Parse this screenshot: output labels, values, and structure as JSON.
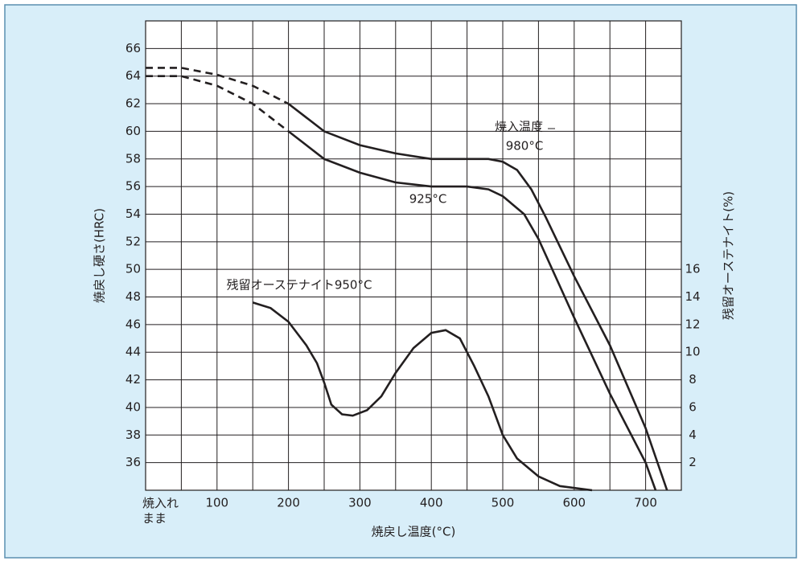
{
  "chart_data": {
    "type": "line",
    "x_label": "焼戻し温度(°C)",
    "y_label": "焼戻し硬さ(HRC)",
    "y2_label": "残留オーステナイト(%)",
    "xlim": [
      0,
      750
    ],
    "xticks": [
      {
        "value": 0,
        "label": "焼入れ\nまま"
      },
      100,
      200,
      300,
      400,
      500,
      600,
      700
    ],
    "ylim": [
      34,
      68
    ],
    "yticks": [
      36,
      38,
      40,
      42,
      44,
      46,
      48,
      50,
      52,
      54,
      56,
      58,
      60,
      62,
      64,
      66
    ],
    "y2lim": [
      0,
      34
    ],
    "y2ticks": [
      2,
      4,
      6,
      8,
      10,
      12,
      14,
      16
    ],
    "grid": true,
    "grid_step_x": 50,
    "grid_step_y": 2,
    "annotation": "焼入温度",
    "series": [
      {
        "name": "980°C",
        "color": "#231f20",
        "dashed_until": 200,
        "x": [
          0,
          50,
          100,
          150,
          200,
          250,
          300,
          350,
          400,
          450,
          480,
          500,
          520,
          540,
          560,
          600,
          650,
          700,
          730
        ],
        "values": [
          64.6,
          64.6,
          64.1,
          63.3,
          62.0,
          60.0,
          59.0,
          58.4,
          58.0,
          58.0,
          58.0,
          57.8,
          57.2,
          55.8,
          53.8,
          49.5,
          44.5,
          38.5,
          34
        ]
      },
      {
        "name": "925°C",
        "color": "#231f20",
        "dashed_until": 200,
        "x": [
          0,
          50,
          100,
          150,
          200,
          250,
          300,
          350,
          400,
          450,
          480,
          500,
          530,
          550,
          600,
          650,
          700,
          714
        ],
        "values": [
          64.0,
          64.0,
          63.3,
          62.0,
          60.0,
          58.0,
          57.0,
          56.3,
          56.0,
          56.0,
          55.8,
          55.3,
          54.0,
          52.2,
          46.5,
          41.0,
          36.0,
          34
        ]
      },
      {
        "name": "残留オーステナイト950°C",
        "color": "#231f20",
        "axis": "y2",
        "x": [
          150,
          175,
          200,
          225,
          240,
          250,
          260,
          275,
          290,
          310,
          330,
          350,
          375,
          400,
          420,
          440,
          460,
          480,
          500,
          520,
          550,
          580,
          625
        ],
        "values": [
          13.6,
          13.2,
          12.2,
          10.5,
          9.2,
          7.8,
          6.2,
          5.5,
          5.4,
          5.8,
          6.8,
          8.5,
          10.3,
          11.4,
          11.6,
          11.0,
          9.0,
          6.8,
          4.0,
          2.3,
          1.0,
          0.3,
          0
        ]
      }
    ]
  }
}
